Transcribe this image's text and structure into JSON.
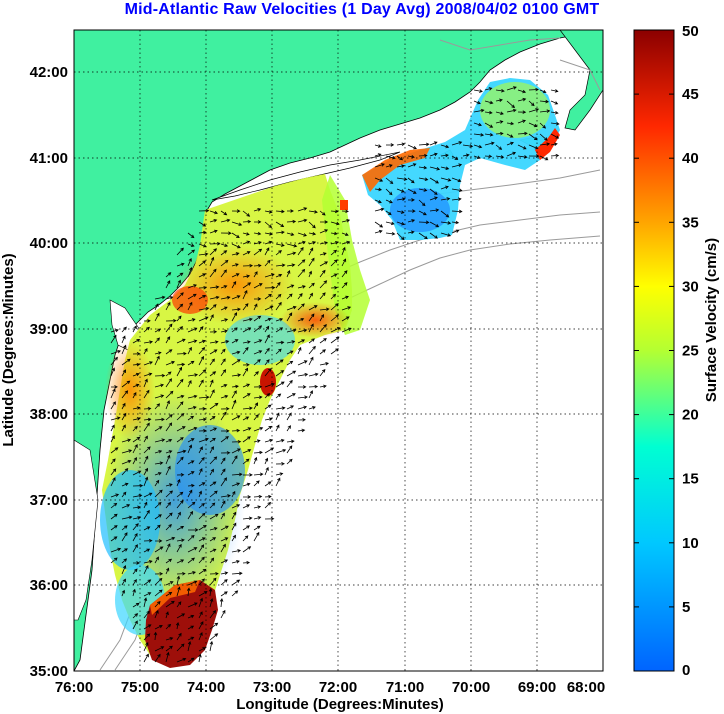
{
  "title": "Mid-Atlantic Raw Velocities (1 Day Avg) 2008/04/02 0100 GMT",
  "map": {
    "xlabel": "Longitude (Degrees:Minutes)",
    "ylabel": "Latitude (Degrees:Minutes)",
    "x_ticks": [
      "76:00",
      "75:00",
      "74:00",
      "73:00",
      "72:00",
      "71:00",
      "70:00",
      "69:00",
      "68:00"
    ],
    "y_ticks": [
      "35:00",
      "36:00",
      "37:00",
      "38:00",
      "39:00",
      "40:00",
      "41:00",
      "42:00"
    ],
    "land_color": "#40f0a0",
    "grid": "dotted"
  },
  "colorbar": {
    "label": "Surface Velocity (cm/s)",
    "ticks": [
      "0",
      "5",
      "10",
      "15",
      "20",
      "25",
      "30",
      "35",
      "40",
      "45",
      "50"
    ],
    "range": [
      0,
      50
    ]
  }
}
